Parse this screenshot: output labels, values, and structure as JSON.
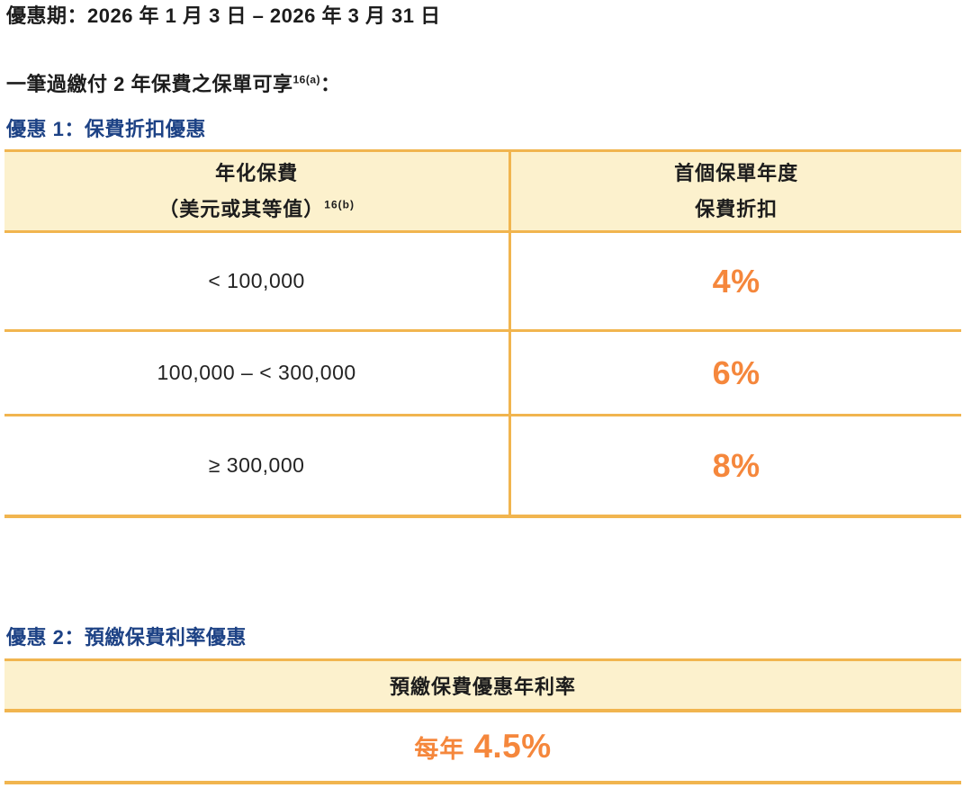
{
  "page": {
    "promo_period": "優惠期：2026 年 1 月 3 日 – 2026 年 3 月 31 日",
    "intro_text": "一筆過繳付 2 年保費之保單可享",
    "intro_sup": "16(a)",
    "intro_colon": "：",
    "offer1": {
      "heading": "優惠 1：保費折扣優惠",
      "table": {
        "col1_header_line1": "年化保費",
        "col1_header_line2": "（美元或其等值）",
        "col1_header_sup": "16(b)",
        "col2_header_line1": "首個保單年度",
        "col2_header_line2": "保費折扣",
        "rows": [
          {
            "band": "< 100,000",
            "discount": "4%"
          },
          {
            "band": "100,000 – < 300,000",
            "discount": "6%"
          },
          {
            "band": "≥ 300,000",
            "discount": "8%"
          }
        ]
      }
    },
    "offer2": {
      "heading": "優惠 2：預繳保費利率優惠",
      "table": {
        "header": "預繳保費優惠年利率",
        "rate_prefix": "每年",
        "rate_value": "4.5%"
      }
    },
    "colors": {
      "heading_blue": "#1d4285",
      "accent_orange": "#f5873c",
      "border_gold": "#f1b54f",
      "header_cream": "#fcf1cd",
      "text_black": "#1c1c1c"
    }
  }
}
